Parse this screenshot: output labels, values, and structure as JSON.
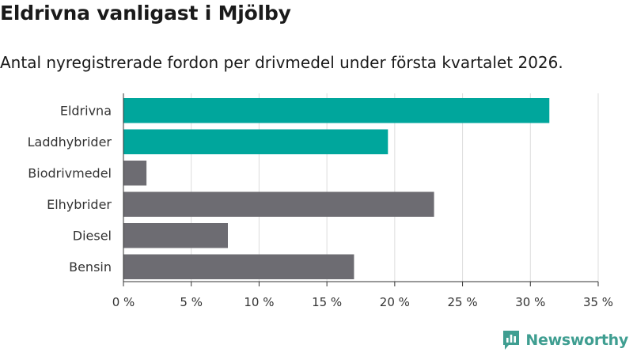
{
  "header": {
    "title": "Eldrivna vanligast i Mjölby",
    "subtitle": "Antal nyregistrerade fordon per drivmedel under första kvartalet 2026."
  },
  "brand": {
    "name": "Newsworthy",
    "logo_icon": "newsworthy-logo-icon"
  },
  "colors": {
    "highlight": "#00a69c",
    "default": "#6d6c72",
    "grid": "#dddddd",
    "axis": "#333333",
    "brand": "#3f9e91"
  },
  "chart_data": {
    "type": "bar",
    "orientation": "horizontal",
    "categories": [
      "Eldrivna",
      "Laddhybrider",
      "Biodrivmedel",
      "Elhybrider",
      "Diesel",
      "Bensin"
    ],
    "values": [
      31.4,
      19.5,
      1.7,
      22.9,
      7.7,
      17.0
    ],
    "highlighted": [
      true,
      true,
      false,
      false,
      false,
      false
    ],
    "xlim": [
      0,
      35
    ],
    "xticks": [
      0,
      5,
      10,
      15,
      20,
      25,
      30,
      35
    ],
    "xtick_labels": [
      "0 %",
      "5 %",
      "10 %",
      "15 %",
      "20 %",
      "25 %",
      "30 %",
      "35 %"
    ],
    "title": "Eldrivna vanligast i Mjölby",
    "xlabel": "",
    "ylabel": ""
  }
}
